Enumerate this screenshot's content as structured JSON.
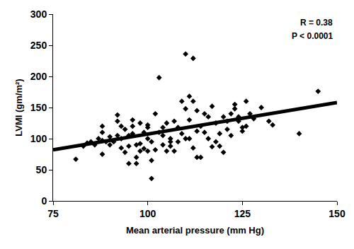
{
  "chart_data": {
    "type": "scatter",
    "x_label": "Mean arterial pressure (mm Hg)",
    "y_label": "LVMI (gm/m²)",
    "xlim": [
      75,
      150
    ],
    "xticks": [
      75,
      100,
      125,
      150
    ],
    "ylim": [
      0,
      300
    ],
    "yticks": [
      0,
      50,
      100,
      150,
      200,
      250,
      300
    ],
    "grid": false,
    "annotations": [
      "R = 0.38",
      "P < 0.0001"
    ],
    "series": [
      {
        "type": "scatter",
        "marker": "diamond",
        "color": "#000000",
        "x": [
          81,
          83,
          84,
          85,
          86,
          87,
          88,
          88,
          88,
          89,
          90,
          90,
          91,
          92,
          92,
          93,
          93,
          93,
          94,
          94,
          95,
          95,
          95,
          96,
          96,
          97,
          97,
          98,
          98,
          98,
          99,
          99,
          100,
          100,
          100,
          101,
          101,
          101,
          102,
          102,
          103,
          103,
          104,
          104,
          105,
          105,
          106,
          106,
          107,
          108,
          108,
          109,
          110,
          110,
          110,
          111,
          111,
          112,
          112,
          112,
          113,
          113,
          114,
          114,
          115,
          115,
          116,
          117,
          117,
          118,
          118,
          119,
          120,
          120,
          121,
          121,
          122,
          122,
          123,
          123,
          124,
          125,
          125,
          126,
          126,
          127,
          128,
          130,
          132,
          133,
          140,
          145,
          88,
          92,
          97,
          100,
          104,
          107,
          109,
          111,
          113,
          116,
          119,
          124,
          96,
          106
        ],
        "values": [
          67,
          88,
          93,
          95,
          90,
          100,
          97,
          110,
          120,
          95,
          103,
          90,
          95,
          128,
          138,
          120,
          100,
          85,
          78,
          115,
          60,
          88,
          105,
          130,
          108,
          90,
          70,
          92,
          80,
          125,
          110,
          84,
          100,
          122,
          118,
          65,
          36,
          95,
          140,
          82,
          198,
          110,
          90,
          105,
          80,
          125,
          100,
          88,
          80,
          118,
          95,
          108,
          236,
          148,
          100,
          168,
          130,
          229,
          160,
          85,
          70,
          112,
          120,
          70,
          140,
          110,
          100,
          152,
          87,
          125,
          95,
          108,
          78,
          135,
          115,
          128,
          105,
          140,
          155,
          148,
          135,
          118,
          112,
          160,
          120,
          140,
          132,
          150,
          128,
          122,
          108,
          176,
          75,
          105,
          60,
          80,
          118,
          128,
          160,
          100,
          145,
          135,
          88,
          128,
          120,
          95
        ]
      },
      {
        "type": "line",
        "line_style": "solid",
        "color": "#000000",
        "x": [
          75,
          150
        ],
        "values": [
          82,
          158
        ]
      }
    ]
  }
}
